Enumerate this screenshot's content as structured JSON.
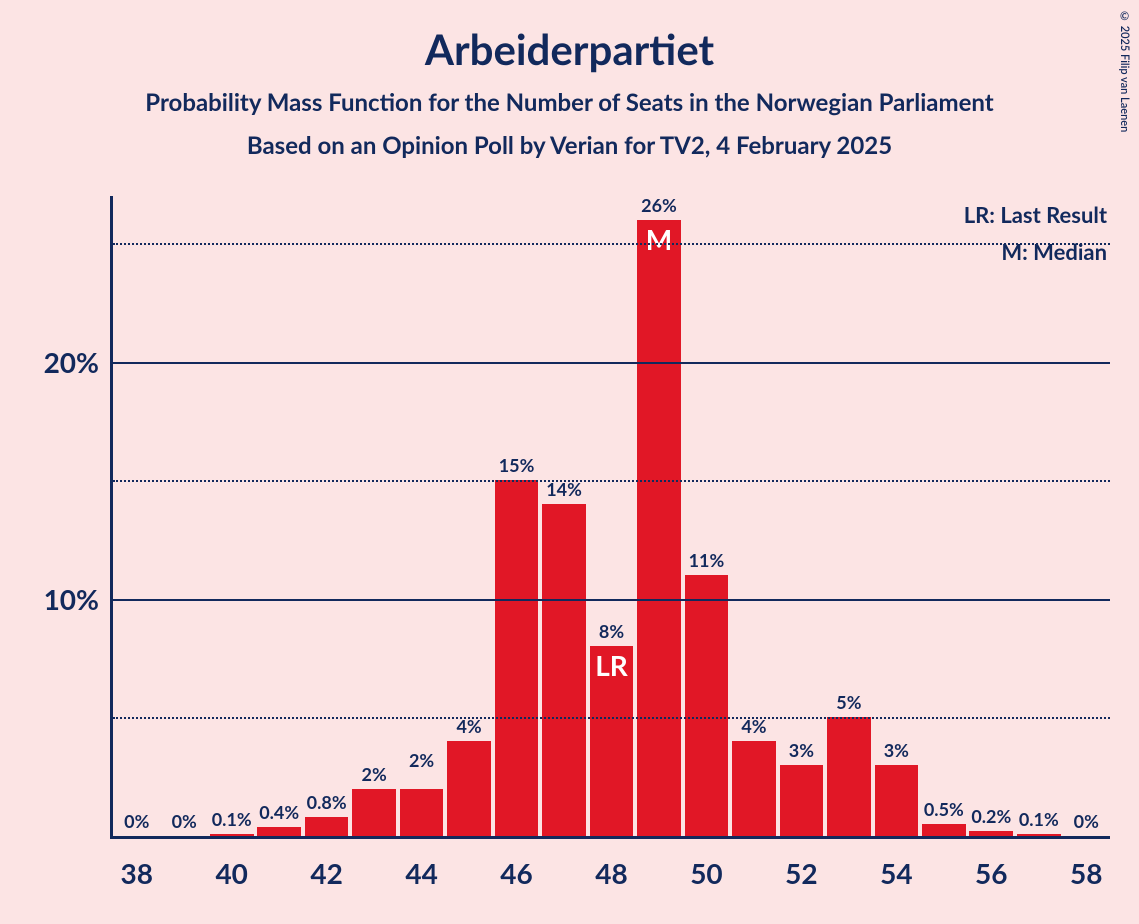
{
  "title": "Arbeiderpartiet",
  "subtitle": "Probability Mass Function for the Number of Seats in the Norwegian Parliament",
  "subtitle2": "Based on an Opinion Poll by Verian for TV2, 4 February 2025",
  "legend": {
    "lr": "LR: Last Result",
    "m": "M: Median"
  },
  "copyright": "© 2025 Filip van Laenen",
  "chart": {
    "type": "bar",
    "background_color": "#fce4e4",
    "bar_color": "#e11726",
    "text_color": "#12295c",
    "inlabel_color": "#ffffff",
    "bar_width_ratio": 0.92,
    "title_fontsize": 42,
    "subtitle_fontsize": 24,
    "axis_label_fontsize": 28,
    "bar_label_fontsize": 18,
    "inlabel_fontsize": 28,
    "x_min": 37.5,
    "x_max": 58.5,
    "x_tick_start": 38,
    "x_tick_step": 2,
    "x_tick_end": 58,
    "y_min": 0,
    "y_max": 27,
    "y_major_ticks": [
      10,
      20
    ],
    "y_minor_ticks": [
      5,
      15,
      25
    ],
    "bars": [
      {
        "x": 38,
        "value": 0,
        "label": "0%"
      },
      {
        "x": 39,
        "value": 0,
        "label": "0%"
      },
      {
        "x": 40,
        "value": 0.1,
        "label": "0.1%"
      },
      {
        "x": 41,
        "value": 0.4,
        "label": "0.4%"
      },
      {
        "x": 42,
        "value": 0.8,
        "label": "0.8%"
      },
      {
        "x": 43,
        "value": 2,
        "label": "2%"
      },
      {
        "x": 44,
        "value": 2,
        "label": "2%",
        "label_voffset": 14
      },
      {
        "x": 45,
        "value": 4,
        "label": "4%"
      },
      {
        "x": 46,
        "value": 15,
        "label": "15%"
      },
      {
        "x": 47,
        "value": 14,
        "label": "14%"
      },
      {
        "x": 48,
        "value": 8,
        "label": "8%",
        "inlabel": "LR"
      },
      {
        "x": 49,
        "value": 26,
        "label": "26%",
        "inlabel": "M"
      },
      {
        "x": 50,
        "value": 11,
        "label": "11%"
      },
      {
        "x": 51,
        "value": 4,
        "label": "4%"
      },
      {
        "x": 52,
        "value": 3,
        "label": "3%"
      },
      {
        "x": 53,
        "value": 5,
        "label": "5%"
      },
      {
        "x": 54,
        "value": 3,
        "label": "3%"
      },
      {
        "x": 55,
        "value": 0.5,
        "label": "0.5%"
      },
      {
        "x": 56,
        "value": 0.2,
        "label": "0.2%"
      },
      {
        "x": 57,
        "value": 0.1,
        "label": "0.1%"
      },
      {
        "x": 58,
        "value": 0,
        "label": "0%"
      }
    ]
  }
}
